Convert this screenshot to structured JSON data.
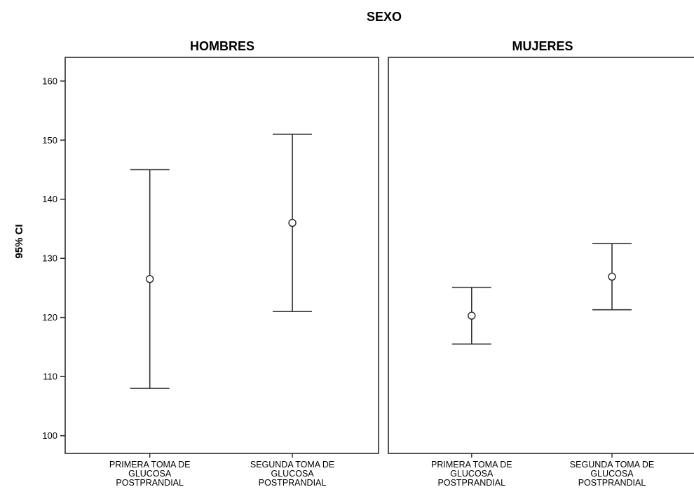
{
  "chart_data": {
    "type": "errorbar",
    "title": "SEXO",
    "ylabel": "95% CI",
    "ylim": [
      97,
      164
    ],
    "yticks": [
      100,
      110,
      120,
      130,
      140,
      150,
      160
    ],
    "panels": [
      {
        "name": "HOMBRES",
        "categories": [
          [
            "PRIMERA TOMA DE",
            "GLUCOSA",
            "POSTPRANDIAL"
          ],
          [
            "SEGUNDA TOMA DE",
            "GLUCOSA",
            "POSTPRANDIAL"
          ]
        ],
        "points": [
          {
            "mean": 126.5,
            "lower": 108.0,
            "upper": 145.0
          },
          {
            "mean": 136.0,
            "lower": 121.0,
            "upper": 151.0
          }
        ]
      },
      {
        "name": "MUJERES",
        "categories": [
          [
            "PRIMERA TOMA DE",
            "GLUCOSA",
            "POSTPRANDIAL"
          ],
          [
            "SEGUNDA TOMA DE",
            "GLUCOSA",
            "POSTPRANDIAL"
          ]
        ],
        "points": [
          {
            "mean": 120.3,
            "lower": 115.5,
            "upper": 125.1
          },
          {
            "mean": 126.9,
            "lower": 121.3,
            "upper": 132.5
          }
        ]
      }
    ],
    "grid": false,
    "colors": {
      "line": "#333333",
      "frame": "#2b2b2b",
      "background": "#ffffff"
    }
  }
}
